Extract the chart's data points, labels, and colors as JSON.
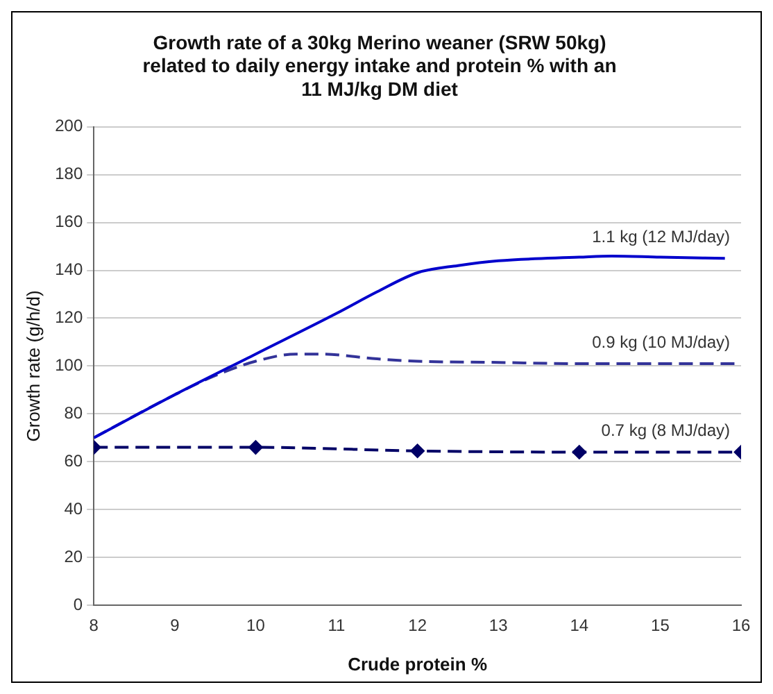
{
  "chart_data": {
    "type": "line",
    "title": "Growth rate of a 30kg Merino weaner (SRW 50kg)\nrelated to daily energy intake and protein % with an\n11 MJ/kg DM diet",
    "xlabel": "Crude protein %",
    "ylabel": "Growth rate (g/h/d)",
    "xlim": [
      8,
      16
    ],
    "xticks": [
      8,
      9,
      10,
      11,
      12,
      13,
      14,
      15,
      16
    ],
    "ylim": [
      0,
      200
    ],
    "yticks": [
      0,
      20,
      40,
      60,
      80,
      100,
      120,
      140,
      160,
      180,
      200
    ],
    "grid": "y",
    "legend": false,
    "series": [
      {
        "color": "#0000cc",
        "line_style": "solid",
        "marker": "none",
        "x": [
          8,
          9,
          10,
          11,
          11.5,
          12,
          12.5,
          13,
          14,
          14.4,
          15,
          15.8
        ],
        "values": [
          70,
          88,
          105,
          122,
          131,
          139,
          142,
          144,
          145.5,
          146,
          145.5,
          145
        ]
      },
      {
        "color": "#333399",
        "line_style": "dashed",
        "marker": "none",
        "x": [
          8,
          9,
          9.5,
          10,
          10.5,
          10.8,
          11.5,
          12,
          13,
          14,
          16
        ],
        "values": [
          70,
          88,
          96,
          102,
          105,
          105,
          103,
          102,
          101.5,
          101,
          101
        ]
      },
      {
        "color": "#000066",
        "line_style": "dashed",
        "marker": "diamond",
        "x": [
          8,
          10,
          12,
          14,
          16
        ],
        "values": [
          66,
          66,
          64.5,
          64,
          64
        ]
      }
    ],
    "annotations": [
      "1.1 kg (12 MJ/day)",
      "0.9 kg (10 MJ/day)",
      "0.7 kg (8 MJ/day)"
    ]
  }
}
